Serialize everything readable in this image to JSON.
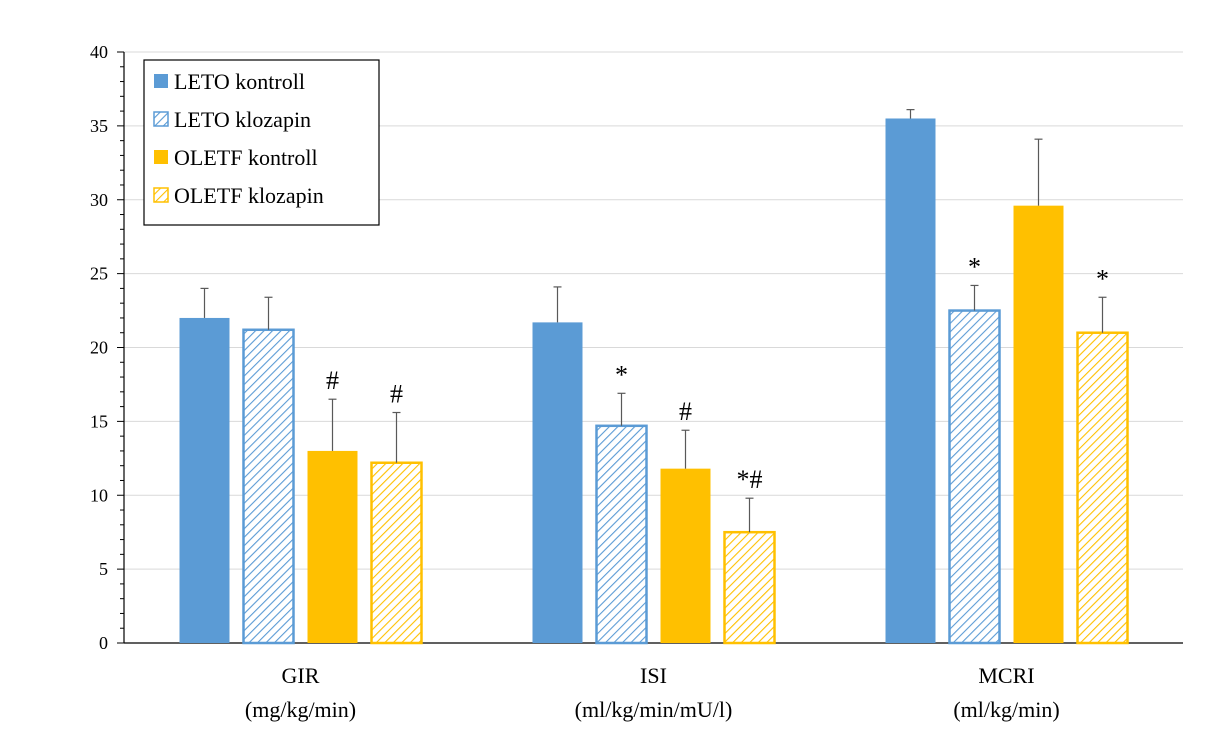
{
  "chart_data": {
    "type": "bar",
    "title": "",
    "xlabel": "",
    "ylabel": "",
    "ylim": [
      0,
      40
    ],
    "yticks": [
      0,
      5,
      10,
      15,
      20,
      25,
      30,
      35,
      40
    ],
    "grid": true,
    "legend_position": "top-left",
    "categories": [
      {
        "name": "GIR",
        "unit": "(mg/kg/min)"
      },
      {
        "name": "ISI",
        "unit": "(ml/kg/min/mU/l)"
      },
      {
        "name": "MCRI",
        "unit": "(ml/kg/min)"
      }
    ],
    "series": [
      {
        "name": "LETO kontroll",
        "color": "#5B9BD5",
        "pattern": "solid",
        "values": [
          22.0,
          21.7,
          35.5
        ],
        "errors": [
          2.0,
          2.4,
          0.6
        ],
        "annotations": [
          "",
          "",
          ""
        ]
      },
      {
        "name": "LETO klozapin",
        "color": "#5B9BD5",
        "pattern": "hatched",
        "values": [
          21.2,
          14.7,
          22.5
        ],
        "errors": [
          2.2,
          2.2,
          1.7
        ],
        "annotations": [
          "",
          "*",
          "*"
        ]
      },
      {
        "name": "OLETF kontroll",
        "color": "#FFC000",
        "pattern": "solid",
        "values": [
          13.0,
          11.8,
          29.6
        ],
        "errors": [
          3.5,
          2.6,
          4.5
        ],
        "annotations": [
          "#",
          "#",
          ""
        ]
      },
      {
        "name": "OLETF klozapin",
        "color": "#FFC000",
        "pattern": "hatched",
        "values": [
          12.2,
          7.5,
          21.0
        ],
        "errors": [
          3.4,
          2.3,
          2.4
        ],
        "annotations": [
          "#",
          "*#",
          "*"
        ]
      }
    ]
  }
}
